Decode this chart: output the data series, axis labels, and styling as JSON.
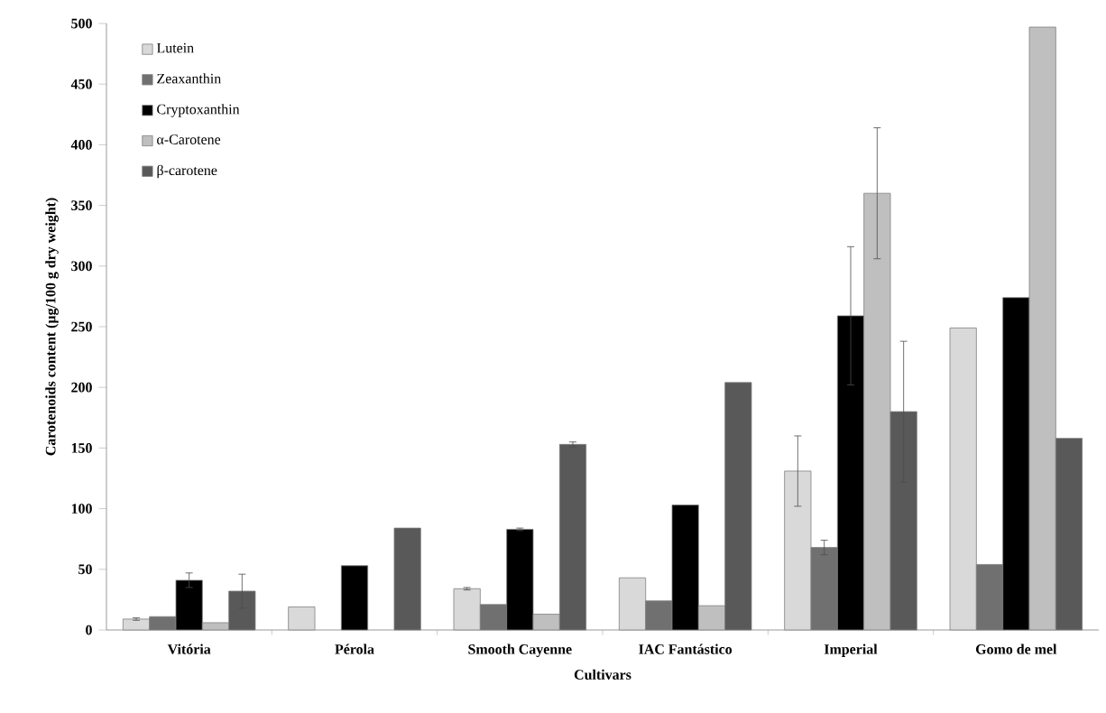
{
  "chart_data": {
    "type": "bar",
    "xlabel": "Cultivars",
    "ylabel": "Carotenoids content (µg/100 g dry weight)",
    "categories": [
      "Vitória",
      "Pérola",
      "Smooth Cayenne",
      "IAC Fantástico",
      "Imperial",
      "Gomo de mel"
    ],
    "series": [
      {
        "name": "Lutein",
        "color": "#d9d9d9",
        "values": [
          9,
          19,
          34,
          43,
          131,
          249
        ],
        "errors": [
          1,
          null,
          1,
          null,
          29,
          null
        ]
      },
      {
        "name": "Zeaxanthin",
        "color": "#707070",
        "values": [
          11,
          null,
          21,
          24,
          68,
          54
        ],
        "errors": [
          null,
          null,
          null,
          null,
          6,
          null
        ]
      },
      {
        "name": "Cryptoxanthin",
        "color": "#000000",
        "values": [
          41,
          53,
          83,
          103,
          259,
          274
        ],
        "errors": [
          6,
          null,
          1,
          null,
          57,
          null
        ]
      },
      {
        "name": "α-Carotene",
        "color": "#bfbfbf",
        "values": [
          6,
          null,
          13,
          20,
          360,
          497
        ],
        "errors": [
          null,
          null,
          null,
          null,
          54,
          null
        ]
      },
      {
        "name": "β-carotene",
        "color": "#595959",
        "values": [
          32,
          84,
          153,
          204,
          180,
          158
        ],
        "errors": [
          14,
          null,
          2,
          null,
          58,
          null
        ]
      }
    ],
    "ylim": [
      0,
      500
    ],
    "yticks": [
      0,
      50,
      100,
      150,
      200,
      250,
      300,
      350,
      400,
      450,
      500
    ],
    "grid": false,
    "legend": "top left"
  }
}
